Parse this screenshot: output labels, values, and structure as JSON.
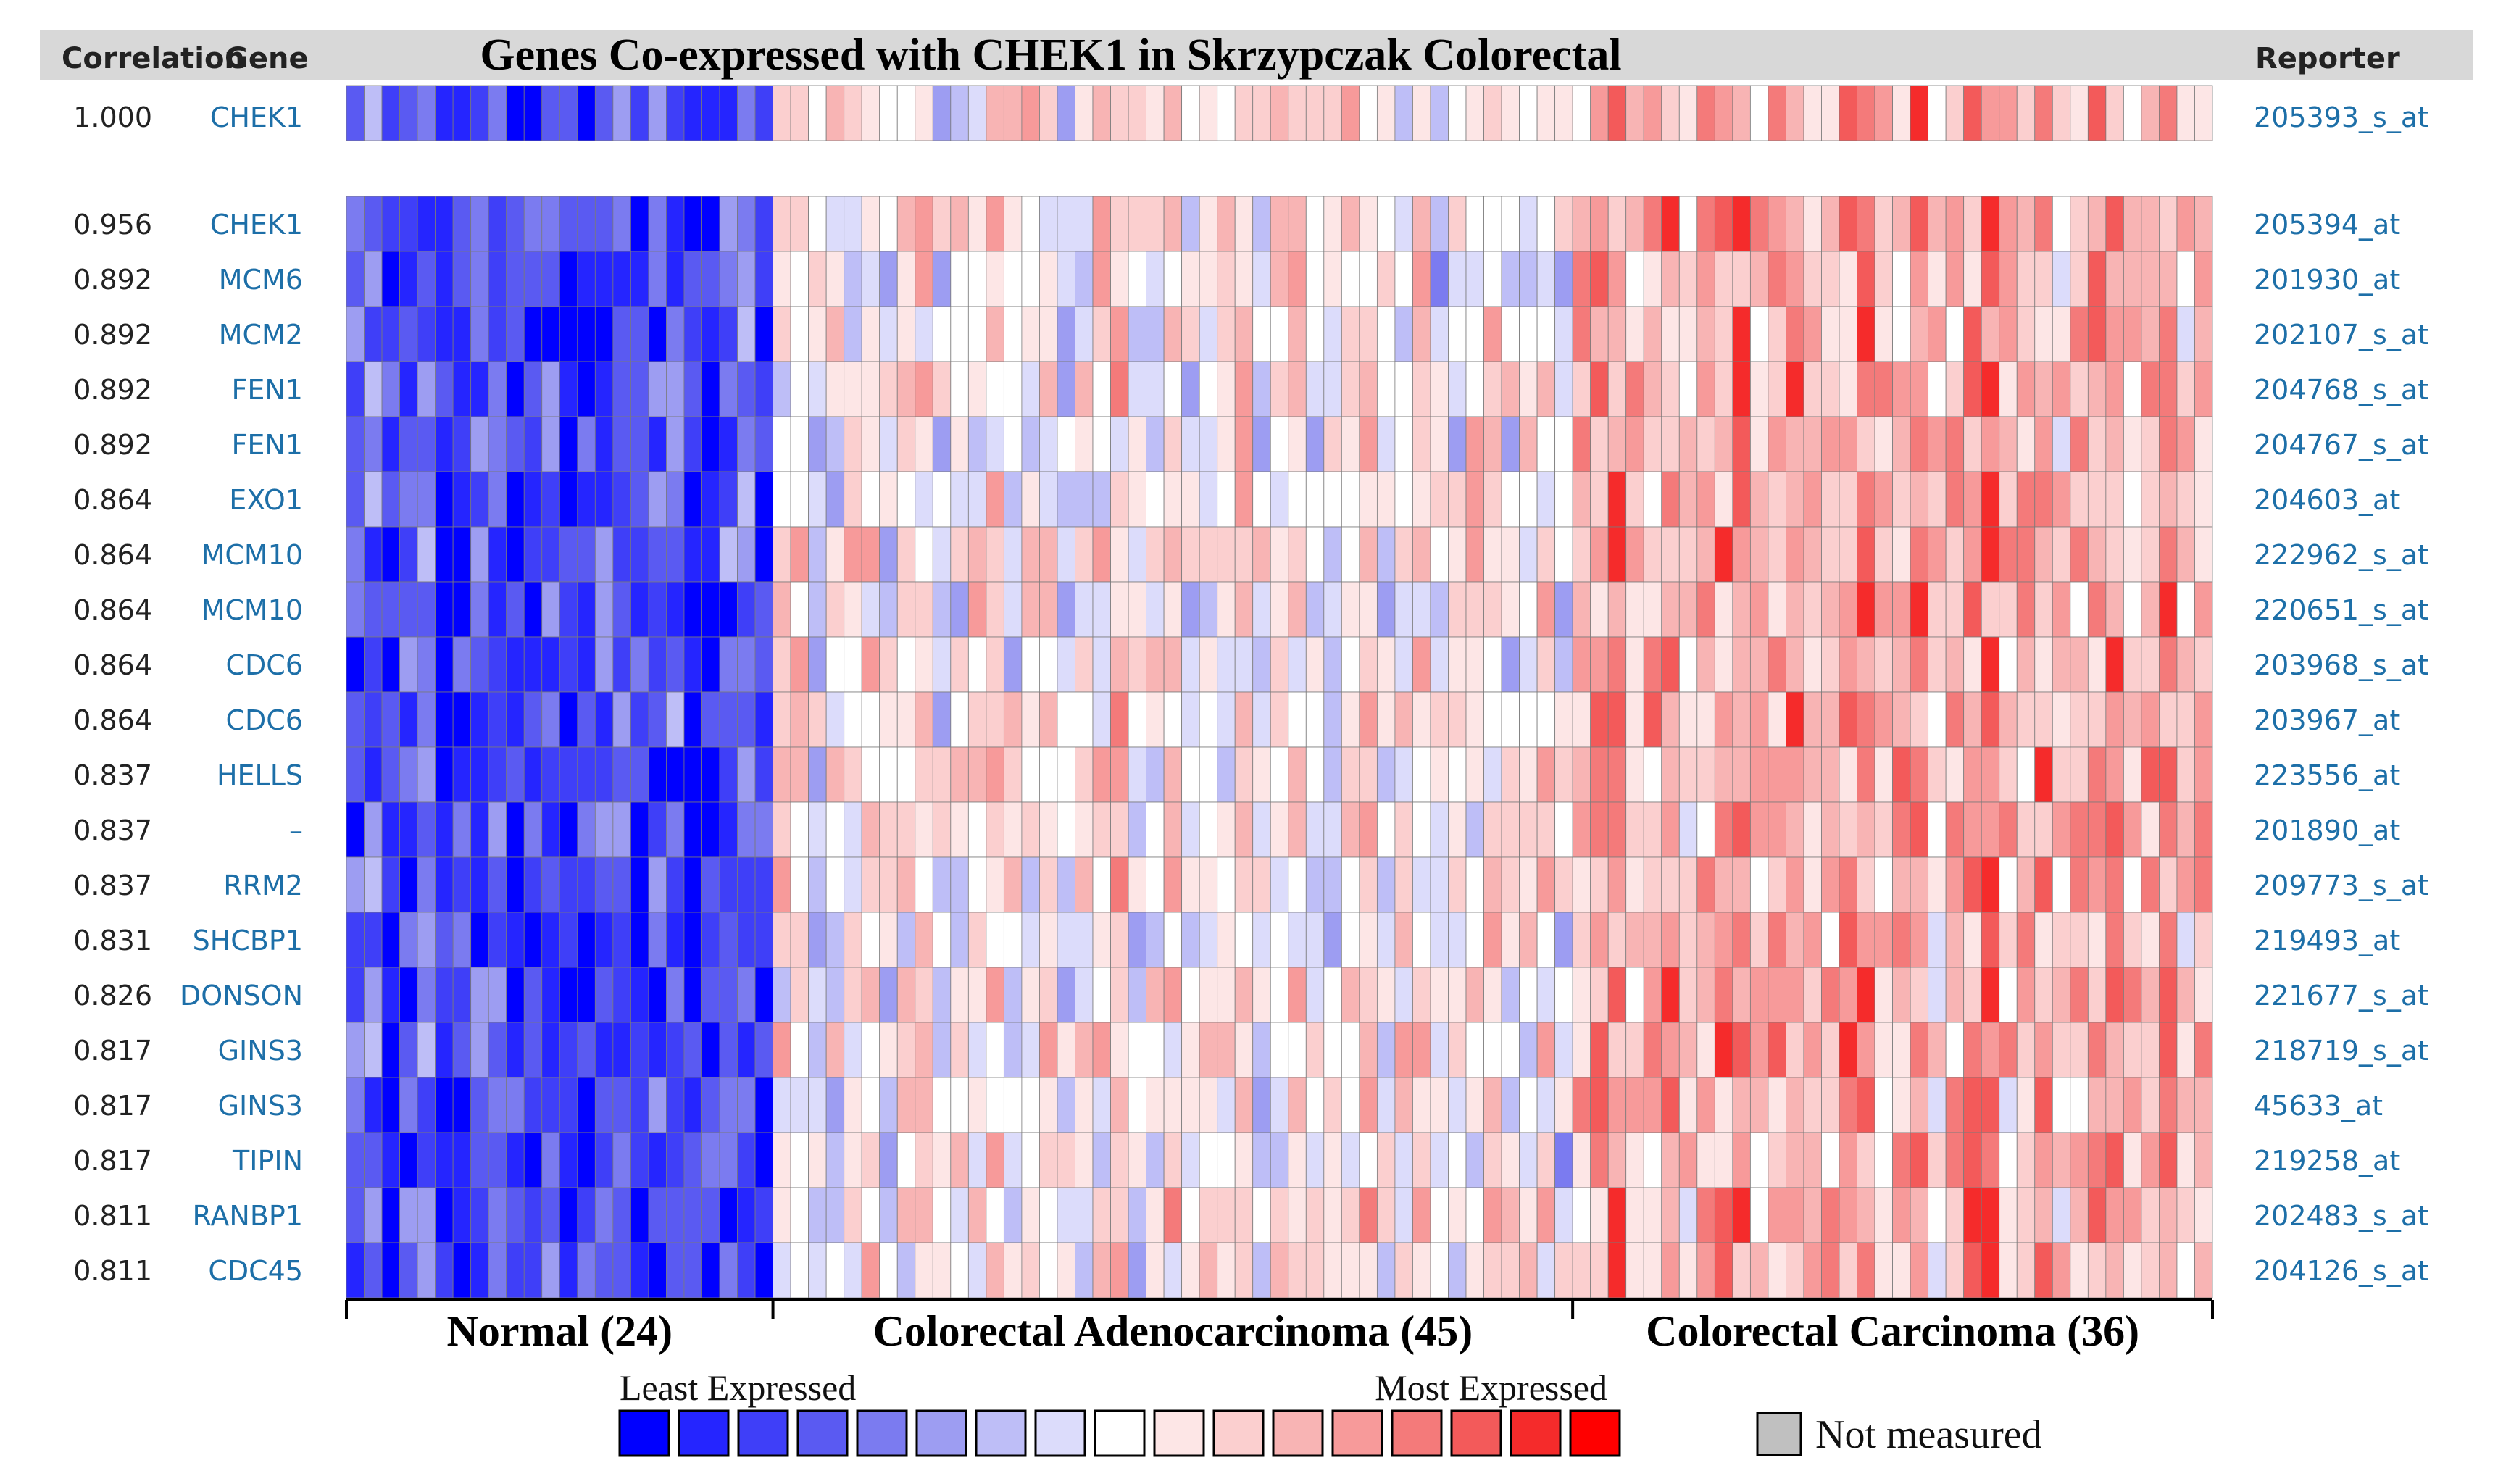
{
  "header": {
    "correlation_label": "Correlation",
    "gene_label": "Gene",
    "title": "Genes Co-expressed with CHEK1 in Skrzypczak Colorectal",
    "reporter_label": "Reporter"
  },
  "colors": {
    "header_bg": "#d8d8d8",
    "link": "#1d6fa8",
    "grid_line": "#7a7a7a",
    "not_measured": "#c0c0c0"
  },
  "chart_data": {
    "type": "heatmap",
    "query_row": {
      "correlation": "1.000",
      "gene": "CHEK1",
      "reporter": "205393_s_at"
    },
    "rows": [
      {
        "correlation": "0.956",
        "gene": "CHEK1",
        "reporter": "205394_at"
      },
      {
        "correlation": "0.892",
        "gene": "MCM6",
        "reporter": "201930_at"
      },
      {
        "correlation": "0.892",
        "gene": "MCM2",
        "reporter": "202107_s_at"
      },
      {
        "correlation": "0.892",
        "gene": "FEN1",
        "reporter": "204768_s_at"
      },
      {
        "correlation": "0.892",
        "gene": "FEN1",
        "reporter": "204767_s_at"
      },
      {
        "correlation": "0.864",
        "gene": "EXO1",
        "reporter": "204603_at"
      },
      {
        "correlation": "0.864",
        "gene": "MCM10",
        "reporter": "222962_s_at"
      },
      {
        "correlation": "0.864",
        "gene": "MCM10",
        "reporter": "220651_s_at"
      },
      {
        "correlation": "0.864",
        "gene": "CDC6",
        "reporter": "203968_s_at"
      },
      {
        "correlation": "0.864",
        "gene": "CDC6",
        "reporter": "203967_at"
      },
      {
        "correlation": "0.837",
        "gene": "HELLS",
        "reporter": "223556_at"
      },
      {
        "correlation": "0.837",
        "gene": "–",
        "reporter": "201890_at"
      },
      {
        "correlation": "0.837",
        "gene": "RRM2",
        "reporter": "209773_s_at"
      },
      {
        "correlation": "0.831",
        "gene": "SHCBP1",
        "reporter": "219493_at"
      },
      {
        "correlation": "0.826",
        "gene": "DONSON",
        "reporter": "221677_s_at"
      },
      {
        "correlation": "0.817",
        "gene": "GINS3",
        "reporter": "218719_s_at"
      },
      {
        "correlation": "0.817",
        "gene": "GINS3",
        "reporter": "45633_at"
      },
      {
        "correlation": "0.817",
        "gene": "TIPIN",
        "reporter": "219258_at"
      },
      {
        "correlation": "0.811",
        "gene": "RANBP1",
        "reporter": "202483_s_at"
      },
      {
        "correlation": "0.811",
        "gene": "CDC45",
        "reporter": "204126_s_at"
      }
    ],
    "groups": [
      {
        "name": "Normal (24)",
        "count": 24,
        "mean_level": 2.0
      },
      {
        "name": "Colorectal Adenocarcinoma (45)",
        "count": 45,
        "mean_level": 8.5
      },
      {
        "name": "Colorectal Carcinoma (36)",
        "count": 36,
        "mean_level": 11.0
      }
    ],
    "scale": {
      "least_label": "Least Expressed",
      "most_label": "Most Expressed",
      "levels": 17,
      "colors": [
        "#0000ff",
        "#2525ff",
        "#3f3ff8",
        "#5a5af2",
        "#7b7bf0",
        "#9d9df2",
        "#bebef7",
        "#dcdcfb",
        "#ffffff",
        "#fde6e6",
        "#fbcfcf",
        "#f8b4b4",
        "#f79a9a",
        "#f47a7a",
        "#f35a5a",
        "#f52b2b",
        "#ff0000"
      ]
    },
    "not_measured_label": "Not measured"
  }
}
